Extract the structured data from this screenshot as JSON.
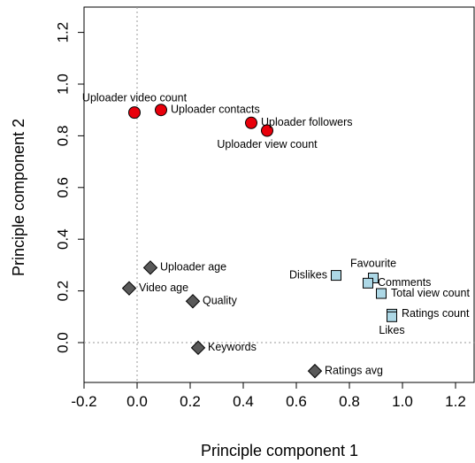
{
  "chart_data": {
    "type": "scatter",
    "xlabel": "Principle component 1",
    "ylabel": "Principle component 2",
    "xlim": [
      -0.22,
      1.3
    ],
    "ylim": [
      -0.17,
      1.3
    ],
    "x_ticks": [
      -0.2,
      0.0,
      0.2,
      0.4,
      0.6,
      0.8,
      1.0,
      1.2
    ],
    "x_tick_labels": [
      "-0.2",
      "0.0",
      "0.2",
      "0.4",
      "0.6",
      "0.8",
      "1.0",
      "1.2"
    ],
    "y_ticks": [
      0.0,
      0.2,
      0.4,
      0.6,
      0.8,
      1.0,
      1.2
    ],
    "y_tick_labels": [
      "0.0",
      "0.2",
      "0.4",
      "0.6",
      "0.8",
      "1.0",
      "1.2"
    ],
    "reference_lines": {
      "x": 0,
      "y": 0
    },
    "grid": false,
    "colors": {
      "circle": "#e8000b",
      "square": "#add8e6",
      "diamond": "#595959",
      "outline": "#000000",
      "reference": "#999999"
    },
    "series": [
      {
        "shape": "circle",
        "points": [
          {
            "label": "Uploader video count",
            "x": -0.01,
            "y": 0.89,
            "label_pos": "above"
          },
          {
            "label": "Uploader contacts",
            "x": 0.09,
            "y": 0.9,
            "label_pos": "right"
          },
          {
            "label": "Uploader followers",
            "x": 0.43,
            "y": 0.85,
            "label_pos": "right"
          },
          {
            "label": "Uploader view count",
            "x": 0.49,
            "y": 0.82,
            "label_pos": "below"
          }
        ]
      },
      {
        "shape": "square",
        "points": [
          {
            "label": "Dislikes",
            "x": 0.75,
            "y": 0.26,
            "label_pos": "left"
          },
          {
            "label": "Favourite",
            "x": 0.89,
            "y": 0.25,
            "label_pos": "above"
          },
          {
            "label": "Comments",
            "x": 0.87,
            "y": 0.23,
            "label_pos": "right"
          },
          {
            "label": "Total view count",
            "x": 0.92,
            "y": 0.19,
            "label_pos": "right"
          },
          {
            "label": "Ratings count",
            "x": 0.96,
            "y": 0.11,
            "label_pos": "right"
          },
          {
            "label": "Likes",
            "x": 0.96,
            "y": 0.1,
            "label_pos": "below"
          }
        ]
      },
      {
        "shape": "diamond",
        "points": [
          {
            "label": "Uploader age",
            "x": 0.05,
            "y": 0.29,
            "label_pos": "right"
          },
          {
            "label": "Video age",
            "x": -0.03,
            "y": 0.21,
            "label_pos": "right"
          },
          {
            "label": "Quality",
            "x": 0.21,
            "y": 0.16,
            "label_pos": "right"
          },
          {
            "label": "Keywords",
            "x": 0.23,
            "y": -0.02,
            "label_pos": "right"
          },
          {
            "label": "Ratings avg",
            "x": 0.67,
            "y": -0.11,
            "label_pos": "right"
          }
        ]
      }
    ]
  }
}
